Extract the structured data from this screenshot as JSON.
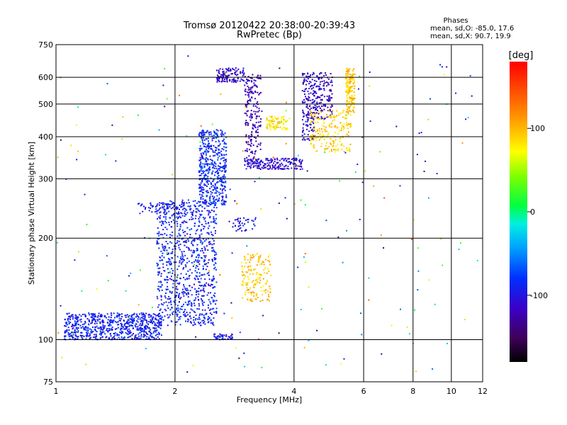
{
  "chart_data": {
    "type": "scatter",
    "title": "Tromsø 20120422 20:38:00-20:39:43",
    "subtitle": "RwPretec (Bp)",
    "xlabel": "Frequency [MHz]",
    "ylabel": "Stationary phase Virtual Height [km]",
    "x_scale": "log",
    "y_scale": "log",
    "xlim": [
      1,
      12
    ],
    "ylim": [
      75,
      750
    ],
    "x_ticks": [
      1,
      2,
      4,
      6,
      8,
      10,
      12
    ],
    "x_tick_labels": [
      "1",
      "2",
      "4",
      "6",
      "8",
      "10",
      "12"
    ],
    "y_ticks": [
      75,
      100,
      200,
      300,
      400,
      500,
      600,
      750
    ],
    "y_tick_labels": [
      "75",
      "100",
      "200",
      "300",
      "400",
      "500",
      "600",
      "750"
    ],
    "grid": true,
    "phases": {
      "heading": "Phases",
      "line_o": "mean, sd,O: -85.0, 17.6",
      "line_x": "mean, sd,X: 90.7, 19.9"
    },
    "colorbar": {
      "label": "[deg]",
      "range": [
        -180,
        180
      ],
      "tick_values": [
        100,
        0,
        -100
      ],
      "tick_labels": [
        "100",
        "0",
        "-100"
      ]
    },
    "series": [
      {
        "x": [
          1.05,
          1.85
        ],
        "y": [
          100,
          120
        ],
        "phase": -90,
        "count": 700,
        "scatter": 0.03
      },
      {
        "x": [
          1.8,
          2.55
        ],
        "y": [
          110,
          260
        ],
        "phase": -90,
        "count": 900,
        "scatter": 0.04
      },
      {
        "x": [
          2.3,
          2.7
        ],
        "y": [
          250,
          420
        ],
        "phase": -85,
        "count": 500,
        "scatter": 0.03
      },
      {
        "x": [
          1.6,
          2.2
        ],
        "y": [
          235,
          255
        ],
        "phase": -95,
        "count": 60,
        "scatter": 0.02
      },
      {
        "x": [
          2.55,
          3.0
        ],
        "y": [
          580,
          640
        ],
        "phase": -110,
        "count": 120,
        "scatter": 0.02
      },
      {
        "x": [
          3.0,
          3.3
        ],
        "y": [
          330,
          620
        ],
        "phase": -120,
        "count": 200,
        "scatter": 0.03
      },
      {
        "x": [
          3.0,
          4.2
        ],
        "y": [
          320,
          345
        ],
        "phase": -110,
        "count": 180,
        "scatter": 0.02
      },
      {
        "x": [
          4.2,
          4.5
        ],
        "y": [
          390,
          620
        ],
        "phase": -110,
        "count": 160,
        "scatter": 0.02
      },
      {
        "x": [
          4.5,
          5.0
        ],
        "y": [
          450,
          620
        ],
        "phase": -115,
        "count": 140,
        "scatter": 0.02
      },
      {
        "x": [
          4.4,
          5.6
        ],
        "y": [
          360,
          480
        ],
        "phase": 90,
        "count": 200,
        "scatter": 0.03
      },
      {
        "x": [
          5.4,
          5.7
        ],
        "y": [
          470,
          640
        ],
        "phase": 95,
        "count": 160,
        "scatter": 0.02
      },
      {
        "x": [
          3.4,
          3.9
        ],
        "y": [
          420,
          460
        ],
        "phase": 85,
        "count": 80,
        "scatter": 0.02
      },
      {
        "x": [
          2.95,
          3.5
        ],
        "y": [
          130,
          180
        ],
        "phase": 95,
        "count": 160,
        "scatter": 0.03
      },
      {
        "x": [
          2.8,
          3.2
        ],
        "y": [
          210,
          230
        ],
        "phase": -100,
        "count": 40,
        "scatter": 0.02
      },
      {
        "x": [
          2.5,
          2.8
        ],
        "y": [
          100,
          104
        ],
        "phase": -100,
        "count": 40,
        "scatter": 0.01
      },
      {
        "x": [
          1.0,
          12.0
        ],
        "y": [
          80,
          700
        ],
        "phase": 0,
        "count": 200,
        "scatter": 0.3
      }
    ]
  }
}
